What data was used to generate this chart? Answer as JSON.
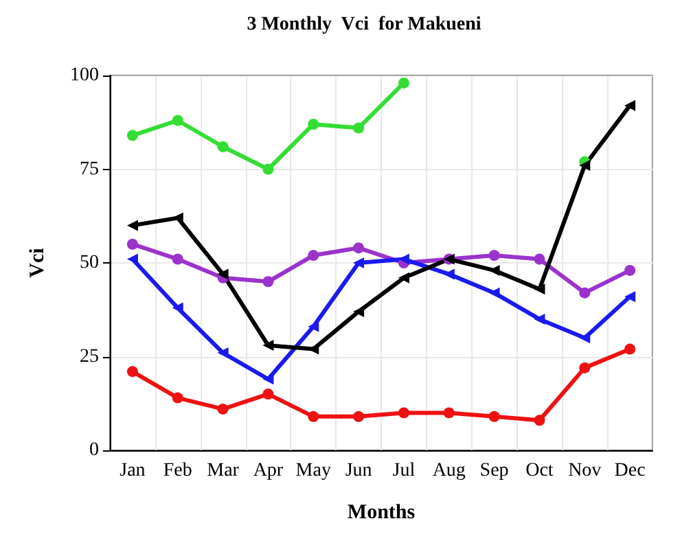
{
  "chart_data": {
    "type": "line",
    "title": "3 Monthly  Vci  for Makueni",
    "xlabel": "Months",
    "ylabel": "Vci",
    "categories": [
      "Jan",
      "Feb",
      "Mar",
      "Apr",
      "May",
      "Jun",
      "Jul",
      "Aug",
      "Sep",
      "Oct",
      "Nov",
      "Dec"
    ],
    "series": [
      {
        "color": "#33dd33",
        "marker": "circle",
        "values": [
          84,
          88,
          81,
          75,
          87,
          86,
          98,
          null,
          null,
          null,
          77,
          null
        ]
      },
      {
        "color": "#9933cc",
        "marker": "circle",
        "values": [
          55,
          51,
          46,
          45,
          52,
          54,
          50,
          51,
          52,
          51,
          42,
          48
        ]
      },
      {
        "color": "#1a1aee",
        "marker": "triangle",
        "values": [
          51,
          38,
          26,
          19,
          33,
          50,
          51,
          47,
          42,
          35,
          30,
          41
        ]
      },
      {
        "color": "#ee1111",
        "marker": "circle",
        "values": [
          21,
          14,
          11,
          15,
          9,
          9,
          10,
          10,
          9,
          8,
          22,
          27
        ]
      },
      {
        "color": "#000000",
        "marker": "triangle",
        "values": [
          60,
          62,
          47,
          28,
          27,
          37,
          46,
          51,
          48,
          43,
          76,
          92
        ]
      }
    ],
    "ylim": [
      0,
      100
    ],
    "yticks": [
      0,
      25,
      50,
      75,
      100
    ],
    "grid": true
  }
}
